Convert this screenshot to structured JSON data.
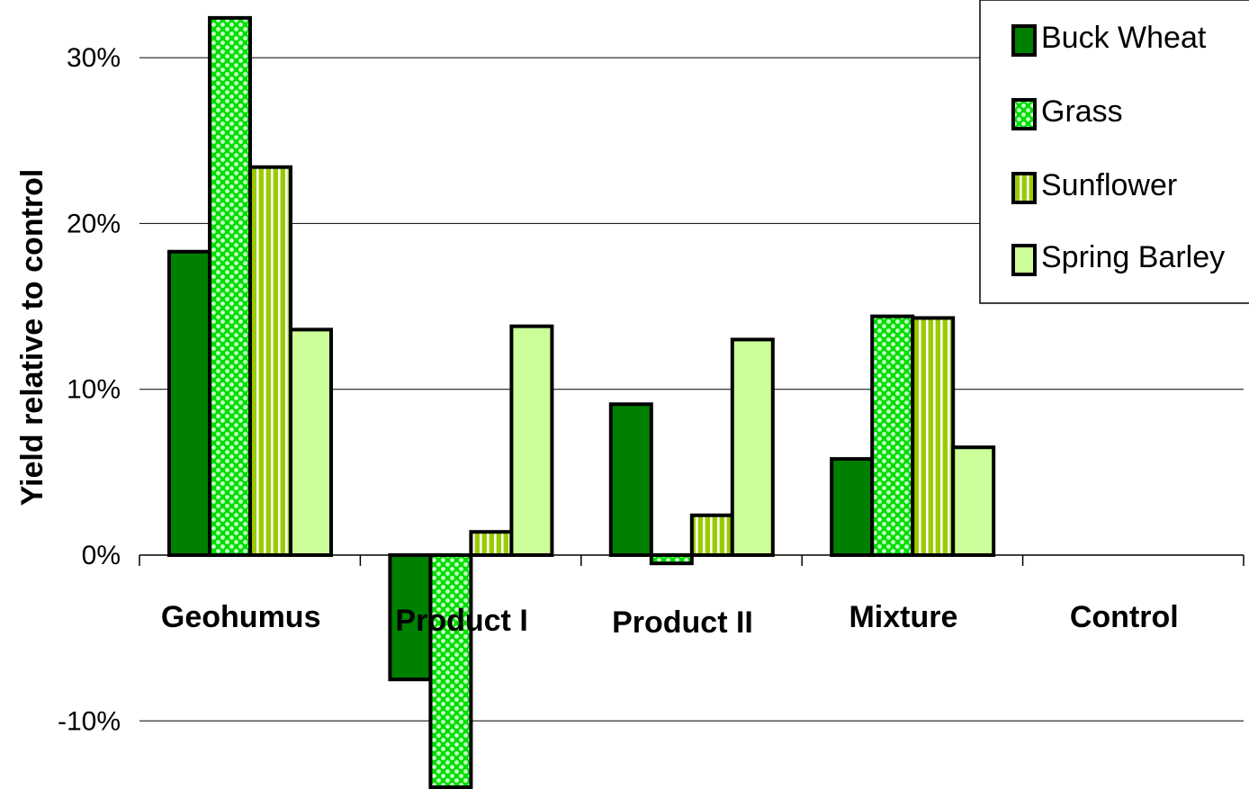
{
  "colors": {
    "buck_wheat": "#008000",
    "grass_base": "#00dd00",
    "grass_dot": "#c8ffc8",
    "sunflower_base": "#99cc00",
    "sunflower_stripe": "#ffffff",
    "spring_barley": "#ccff99",
    "outline": "#000000",
    "gridline": "#000000"
  },
  "chart_data": {
    "type": "bar",
    "title": "",
    "xlabel": "",
    "ylabel": "Yield relative to control",
    "ylim": [
      -14,
      33
    ],
    "yticks": [
      -10,
      0,
      10,
      20,
      30
    ],
    "ytick_labels": [
      "-10%",
      "0%",
      "10%",
      "20%",
      "30%"
    ],
    "grid": true,
    "legend_position": "top-right",
    "categories": [
      "Geohumus",
      "Product I",
      "Product II",
      "Mixture",
      "Control"
    ],
    "series": [
      {
        "name": "Buck Wheat",
        "pattern": "solid",
        "values": [
          18.3,
          -7.5,
          9.1,
          5.8,
          0
        ]
      },
      {
        "name": "Grass",
        "pattern": "dots",
        "values": [
          32.4,
          -14.0,
          -0.5,
          14.4,
          0
        ]
      },
      {
        "name": "Sunflower",
        "pattern": "stripes",
        "values": [
          23.4,
          1.4,
          2.4,
          14.3,
          0
        ]
      },
      {
        "name": "Spring Barley",
        "pattern": "solid-light",
        "values": [
          13.6,
          13.8,
          13.0,
          6.5,
          0
        ]
      }
    ]
  }
}
